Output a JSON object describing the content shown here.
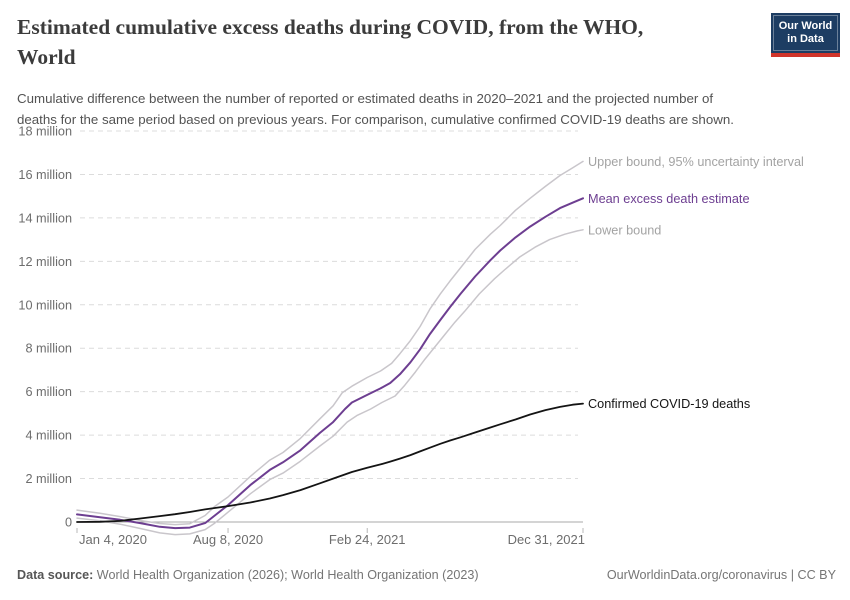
{
  "header": {
    "title_lines": [
      "Estimated cumulative excess deaths during COVID, from the WHO,",
      "World"
    ],
    "subtitle_lines": [
      "Cumulative difference between the number of reported or estimated deaths in 2020–2021 and the projected number of",
      "deaths for the same period based on previous years. For comparison, cumulative confirmed COVID-19 deaths are shown."
    ],
    "logo": {
      "line1": "Our World",
      "line2": "in Data",
      "bg": "#1d3d63",
      "bar": "#d1352b"
    }
  },
  "chart_data": {
    "type": "line",
    "title": "Estimated cumulative excess deaths during COVID, from the WHO, World",
    "x_unit": "days since Jan 4, 2020",
    "xlim": [
      0,
      727
    ],
    "ylim": [
      -0.7,
      18
    ],
    "grid": true,
    "legend_position": "right-end-labels",
    "x_ticks": [
      {
        "day": 0,
        "label": "Jan 4, 2020",
        "anchor": "start"
      },
      {
        "day": 217,
        "label": "Aug 8, 2020",
        "anchor": "middle"
      },
      {
        "day": 417,
        "label": "Feb 24, 2021",
        "anchor": "middle"
      },
      {
        "day": 727,
        "label": "Dec 31, 2021",
        "anchor": "end"
      }
    ],
    "y_ticks": [
      {
        "v": 0,
        "label": "0"
      },
      {
        "v": 2,
        "label": "2 million"
      },
      {
        "v": 4,
        "label": "4 million"
      },
      {
        "v": 6,
        "label": "6 million"
      },
      {
        "v": 8,
        "label": "8 million"
      },
      {
        "v": 10,
        "label": "10 million"
      },
      {
        "v": 12,
        "label": "12 million"
      },
      {
        "v": 14,
        "label": "14 million"
      },
      {
        "v": 16,
        "label": "16 million"
      },
      {
        "v": 18,
        "label": "18 million"
      }
    ],
    "colors": {
      "grid": "#dcdcdc",
      "zero_line": "#a8a8a8",
      "tick": "#b8b8b8",
      "axis_text": "#6d6d6d"
    },
    "series": [
      {
        "name": "Upper bound, 95% uncertainty interval",
        "color": "#c9c6cb",
        "label_color": "#a3a3a3",
        "width": 1.5,
        "points": [
          [
            0,
            0.55
          ],
          [
            33,
            0.4
          ],
          [
            62,
            0.25
          ],
          [
            91,
            0.07
          ],
          [
            119,
            -0.07
          ],
          [
            141,
            -0.12
          ],
          [
            162,
            -0.08
          ],
          [
            184,
            0.3
          ],
          [
            198,
            0.72
          ],
          [
            217,
            1.15
          ],
          [
            249,
            2.1
          ],
          [
            277,
            2.85
          ],
          [
            296,
            3.2
          ],
          [
            321,
            3.85
          ],
          [
            349,
            4.75
          ],
          [
            368,
            5.35
          ],
          [
            381,
            5.95
          ],
          [
            395,
            6.25
          ],
          [
            417,
            6.65
          ],
          [
            436,
            6.95
          ],
          [
            452,
            7.3
          ],
          [
            464,
            7.75
          ],
          [
            479,
            8.35
          ],
          [
            493,
            9.0
          ],
          [
            507,
            9.8
          ],
          [
            522,
            10.5
          ],
          [
            536,
            11.1
          ],
          [
            551,
            11.7
          ],
          [
            572,
            12.55
          ],
          [
            594,
            13.25
          ],
          [
            608,
            13.65
          ],
          [
            630,
            14.35
          ],
          [
            651,
            14.9
          ],
          [
            673,
            15.45
          ],
          [
            694,
            15.95
          ],
          [
            712,
            16.3
          ],
          [
            727,
            16.6
          ]
        ]
      },
      {
        "name": "Lower bound",
        "color": "#c9c6cb",
        "label_color": "#a3a3a3",
        "width": 1.5,
        "points": [
          [
            0,
            0.18
          ],
          [
            33,
            0.06
          ],
          [
            62,
            -0.1
          ],
          [
            91,
            -0.3
          ],
          [
            119,
            -0.5
          ],
          [
            141,
            -0.58
          ],
          [
            162,
            -0.55
          ],
          [
            184,
            -0.35
          ],
          [
            198,
            -0.05
          ],
          [
            217,
            0.45
          ],
          [
            249,
            1.3
          ],
          [
            277,
            1.95
          ],
          [
            296,
            2.25
          ],
          [
            321,
            2.8
          ],
          [
            349,
            3.5
          ],
          [
            368,
            3.95
          ],
          [
            388,
            4.6
          ],
          [
            402,
            4.9
          ],
          [
            422,
            5.2
          ],
          [
            438,
            5.5
          ],
          [
            457,
            5.8
          ],
          [
            471,
            6.3
          ],
          [
            486,
            6.9
          ],
          [
            500,
            7.5
          ],
          [
            514,
            8.05
          ],
          [
            529,
            8.65
          ],
          [
            543,
            9.2
          ],
          [
            557,
            9.7
          ],
          [
            578,
            10.5
          ],
          [
            600,
            11.2
          ],
          [
            614,
            11.6
          ],
          [
            636,
            12.2
          ],
          [
            658,
            12.65
          ],
          [
            679,
            13.0
          ],
          [
            701,
            13.25
          ],
          [
            719,
            13.4
          ],
          [
            727,
            13.45
          ]
        ]
      },
      {
        "name": "Mean excess death estimate",
        "color": "#6d3e91",
        "label_color": "#6d3e91",
        "width": 2,
        "points": [
          [
            0,
            0.35
          ],
          [
            33,
            0.22
          ],
          [
            62,
            0.1
          ],
          [
            91,
            -0.05
          ],
          [
            119,
            -0.22
          ],
          [
            141,
            -0.28
          ],
          [
            162,
            -0.26
          ],
          [
            184,
            -0.05
          ],
          [
            198,
            0.3
          ],
          [
            217,
            0.78
          ],
          [
            249,
            1.7
          ],
          [
            277,
            2.4
          ],
          [
            296,
            2.75
          ],
          [
            321,
            3.3
          ],
          [
            349,
            4.1
          ],
          [
            368,
            4.6
          ],
          [
            385,
            5.2
          ],
          [
            395,
            5.5
          ],
          [
            417,
            5.85
          ],
          [
            436,
            6.15
          ],
          [
            450,
            6.4
          ],
          [
            464,
            6.8
          ],
          [
            479,
            7.35
          ],
          [
            493,
            7.95
          ],
          [
            507,
            8.65
          ],
          [
            522,
            9.3
          ],
          [
            536,
            9.9
          ],
          [
            551,
            10.5
          ],
          [
            572,
            11.3
          ],
          [
            594,
            12.05
          ],
          [
            608,
            12.5
          ],
          [
            630,
            13.1
          ],
          [
            651,
            13.6
          ],
          [
            673,
            14.05
          ],
          [
            694,
            14.45
          ],
          [
            712,
            14.7
          ],
          [
            727,
            14.9
          ]
        ]
      },
      {
        "name": "Confirmed COVID-19 deaths",
        "color": "#141414",
        "label_color": "#141414",
        "width": 1.8,
        "points": [
          [
            0,
            0.0
          ],
          [
            33,
            0.01
          ],
          [
            62,
            0.05
          ],
          [
            91,
            0.16
          ],
          [
            119,
            0.27
          ],
          [
            141,
            0.36
          ],
          [
            162,
            0.46
          ],
          [
            184,
            0.58
          ],
          [
            217,
            0.73
          ],
          [
            249,
            0.9
          ],
          [
            277,
            1.08
          ],
          [
            296,
            1.24
          ],
          [
            321,
            1.47
          ],
          [
            349,
            1.78
          ],
          [
            368,
            2.0
          ],
          [
            395,
            2.3
          ],
          [
            417,
            2.5
          ],
          [
            436,
            2.65
          ],
          [
            450,
            2.78
          ],
          [
            464,
            2.92
          ],
          [
            479,
            3.08
          ],
          [
            493,
            3.25
          ],
          [
            507,
            3.42
          ],
          [
            522,
            3.6
          ],
          [
            536,
            3.75
          ],
          [
            551,
            3.9
          ],
          [
            572,
            4.12
          ],
          [
            594,
            4.35
          ],
          [
            608,
            4.5
          ],
          [
            630,
            4.72
          ],
          [
            651,
            4.95
          ],
          [
            673,
            5.15
          ],
          [
            694,
            5.3
          ],
          [
            712,
            5.4
          ],
          [
            727,
            5.45
          ]
        ]
      }
    ]
  },
  "footer": {
    "source_label": "Data source:",
    "source_text": " World Health Organization (2026); World Health Organization (2023)",
    "credit": "OurWorldinData.org/coronavirus | CC BY"
  }
}
